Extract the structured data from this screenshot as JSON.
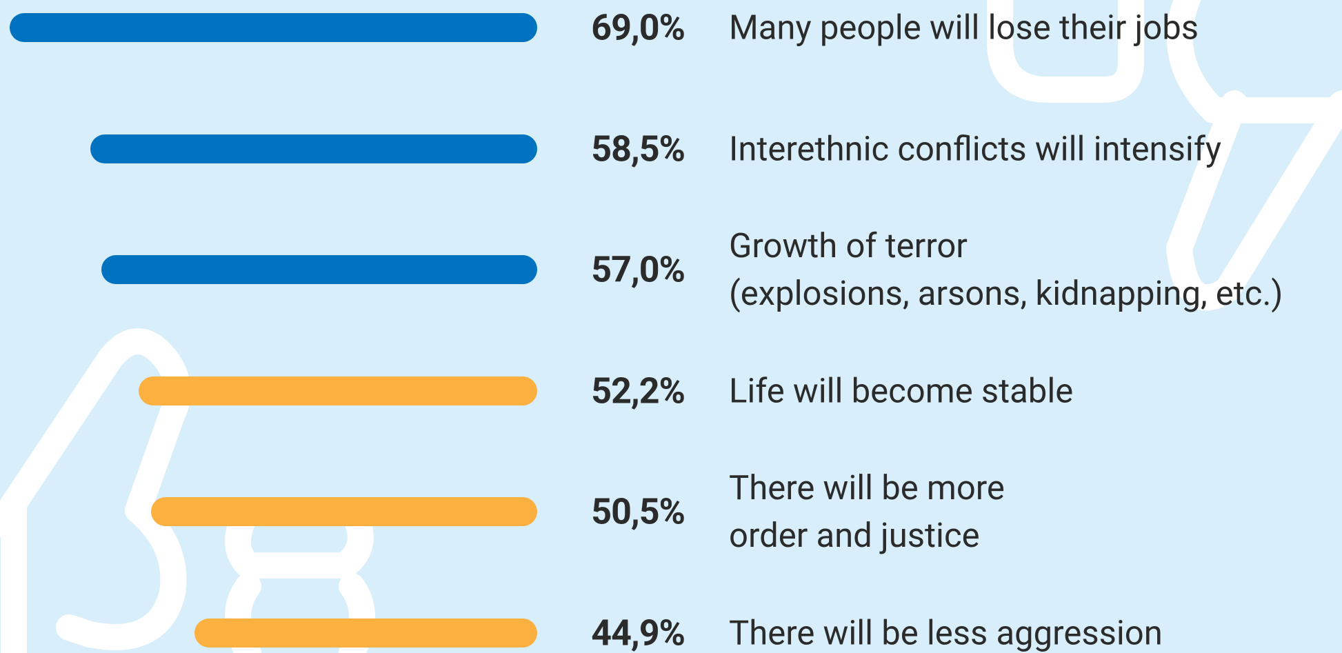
{
  "chart_data": {
    "type": "bar",
    "orientation": "horizontal",
    "categories": [
      "Many people will lose their jobs",
      "Interethnic conflicts will intensify",
      "Growth of terror\n(explosions, arsons, kidnapping, etc.)",
      "Life will become stable",
      "There will be more\norder and justice",
      "There will be less aggression"
    ],
    "values": [
      69.0,
      58.5,
      57.0,
      52.2,
      50.5,
      44.9
    ],
    "value_labels": [
      "69,0%",
      "58,5%",
      "57,0%",
      "52,2%",
      "50,5%",
      "44,9%"
    ],
    "colors": [
      "#0072c0",
      "#0072c0",
      "#0072c0",
      "#fbb040",
      "#fbb040",
      "#fbb040"
    ]
  }
}
